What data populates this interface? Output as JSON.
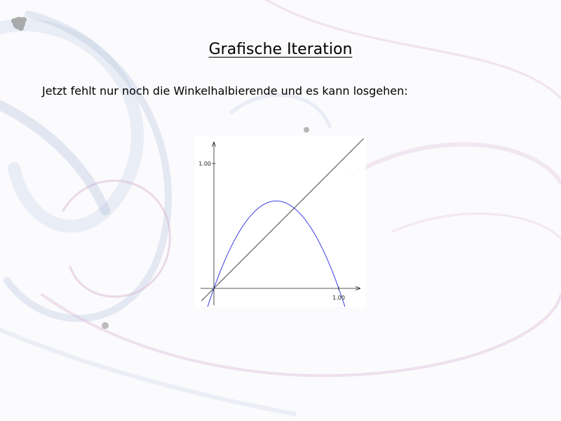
{
  "slide": {
    "title": "Grafische Iteration",
    "text": "Jetzt fehlt nur noch die Winkelhalbierende und es kann losgehen:"
  },
  "colors": {
    "curve": "#2a2ae6",
    "diagonal": "#333333",
    "axes": "#222222",
    "background_swirl_blue": "#9fb0d0",
    "background_swirl_pink": "#d7a7d0"
  },
  "chart_data": {
    "type": "line",
    "title": "",
    "xlabel": "",
    "ylabel": "",
    "xlim": [
      -0.05,
      1.05
    ],
    "ylim": [
      -0.15,
      1.15
    ],
    "x_ticks": [
      {
        "value": 1.0,
        "label": "1.00"
      }
    ],
    "y_ticks": [
      {
        "value": 1.0,
        "label": "1.00"
      }
    ],
    "grid": false,
    "series": [
      {
        "kind": "function",
        "expression": "y = 2.8·x·(1−x)",
        "x_range": [
          -0.05,
          1.05
        ],
        "color": "#2a2ae6"
      },
      {
        "kind": "function",
        "expression": "y = x",
        "x_range": [
          -0.1,
          1.2
        ],
        "color": "#333333"
      }
    ]
  }
}
